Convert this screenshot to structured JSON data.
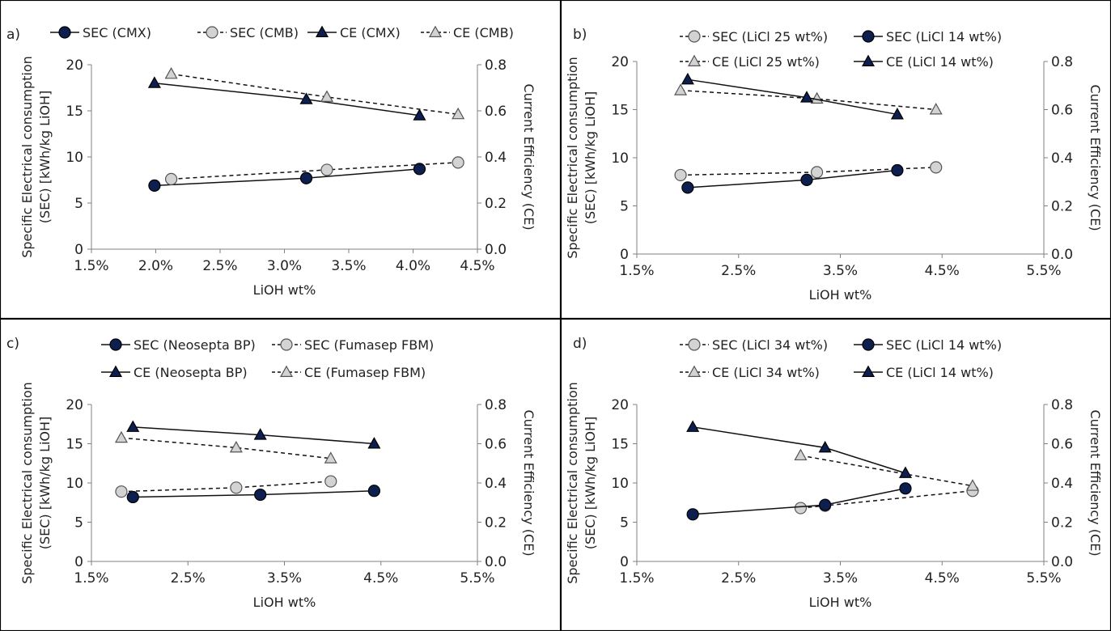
{
  "colors": {
    "series_filled": "#0d1f4f",
    "series_open": "#d3d3d3",
    "axis": "#808080",
    "line": "#111111",
    "border": "#000000"
  },
  "chart_data": [
    {
      "panel_label": "a)",
      "type": "line",
      "xlabel": "LiOH wt%",
      "ylabel_lines": [
        "Specific Electrical consumption",
        "(SEC) [kWh/kg LiOH]"
      ],
      "y2label": "Current Efficiency (CE)",
      "xlim": [
        0.015,
        0.045
      ],
      "xticks": [
        "1.5%",
        "2.0%",
        "2.5%",
        "3.0%",
        "3.5%",
        "4.0%",
        "4.5%"
      ],
      "ylim": [
        0,
        20
      ],
      "yticks": [
        "0",
        "5",
        "10",
        "15",
        "20"
      ],
      "y2lim": [
        0,
        0.8
      ],
      "y2ticks": [
        "0.0",
        "0.2",
        "0.4",
        "0.6",
        "0.8"
      ],
      "legend_rows": [
        [
          0,
          1,
          2,
          3
        ]
      ],
      "series": [
        {
          "name": "SEC (CMX)",
          "marker": "circle",
          "fill": "filled",
          "dash": false,
          "axis": "left",
          "x": [
            0.0199,
            0.0317,
            0.0405
          ],
          "y": [
            6.9,
            7.7,
            8.7
          ]
        },
        {
          "name": "SEC (CMB)",
          "marker": "circle",
          "fill": "open",
          "dash": true,
          "axis": "left",
          "x": [
            0.0212,
            0.0333,
            0.0435
          ],
          "y": [
            7.6,
            8.6,
            9.4
          ]
        },
        {
          "name": "CE (CMX)",
          "marker": "triangle",
          "fill": "filled",
          "dash": false,
          "axis": "right",
          "x": [
            0.0199,
            0.0317,
            0.0405
          ],
          "y": [
            0.72,
            0.65,
            0.58
          ]
        },
        {
          "name": "CE (CMB)",
          "marker": "triangle",
          "fill": "open",
          "dash": true,
          "axis": "right",
          "x": [
            0.0212,
            0.0333,
            0.0435
          ],
          "y": [
            0.76,
            0.66,
            0.585
          ]
        }
      ]
    },
    {
      "panel_label": "b)",
      "type": "line",
      "xlabel": "LiOH wt%",
      "ylabel_lines": [
        "Specific Electrical consumption",
        "(SEC) [kWh/kg LiOH]"
      ],
      "y2label": "Current Efficiency (CE)",
      "xlim": [
        0.015,
        0.055
      ],
      "xticks": [
        "1.5%",
        "2.5%",
        "3.5%",
        "4.5%",
        "5.5%"
      ],
      "ylim": [
        0,
        20
      ],
      "yticks": [
        "0",
        "5",
        "10",
        "15",
        "20"
      ],
      "y2lim": [
        0,
        0.8
      ],
      "y2ticks": [
        "0.0",
        "0.2",
        "0.4",
        "0.6",
        "0.8"
      ],
      "legend_rows": [
        [
          0,
          1
        ],
        [
          2,
          3
        ]
      ],
      "series": [
        {
          "name": "SEC (LiCl 25 wt%)",
          "marker": "circle",
          "fill": "open",
          "dash": true,
          "axis": "left",
          "x": [
            0.0193,
            0.0327,
            0.0444
          ],
          "y": [
            8.2,
            8.5,
            9.0
          ]
        },
        {
          "name": "SEC (LiCl 14 wt%)",
          "marker": "circle",
          "fill": "filled",
          "dash": false,
          "axis": "left",
          "x": [
            0.02,
            0.0317,
            0.0406
          ],
          "y": [
            6.9,
            7.7,
            8.7
          ]
        },
        {
          "name": "CE (LiCl 25 wt%)",
          "marker": "triangle",
          "fill": "open",
          "dash": true,
          "axis": "right",
          "x": [
            0.0193,
            0.0327,
            0.0444
          ],
          "y": [
            0.68,
            0.645,
            0.6
          ]
        },
        {
          "name": "CE (LiCl 14 wt%)",
          "marker": "triangle",
          "fill": "filled",
          "dash": false,
          "axis": "right",
          "x": [
            0.02,
            0.0317,
            0.0406
          ],
          "y": [
            0.725,
            0.65,
            0.58
          ]
        }
      ]
    },
    {
      "panel_label": "c)",
      "type": "line",
      "xlabel": "LiOH wt%",
      "ylabel_lines": [
        "Specific Electrical consumption",
        "(SEC) [kWh/kg LiOH]"
      ],
      "y2label": "Current Efficiency (CE)",
      "xlim": [
        0.015,
        0.055
      ],
      "xticks": [
        "1.5%",
        "2.5%",
        "3.5%",
        "4.5%",
        "5.5%"
      ],
      "ylim": [
        0,
        20
      ],
      "yticks": [
        "0",
        "5",
        "10",
        "15",
        "20"
      ],
      "y2lim": [
        0,
        0.8
      ],
      "y2ticks": [
        "0.0",
        "0.2",
        "0.4",
        "0.6",
        "0.8"
      ],
      "legend_rows": [
        [
          0,
          1
        ],
        [
          2,
          3
        ]
      ],
      "series": [
        {
          "name": "SEC (Neosepta BP)",
          "marker": "circle",
          "fill": "filled",
          "dash": false,
          "axis": "left",
          "x": [
            0.0193,
            0.0325,
            0.0443
          ],
          "y": [
            8.2,
            8.5,
            9.0
          ]
        },
        {
          "name": "SEC (Fumasep FBM)",
          "marker": "circle",
          "fill": "open",
          "dash": true,
          "axis": "left",
          "x": [
            0.0181,
            0.03,
            0.0398
          ],
          "y": [
            8.9,
            9.4,
            10.2
          ]
        },
        {
          "name": "CE (Neosepta BP)",
          "marker": "triangle",
          "fill": "filled",
          "dash": false,
          "axis": "right",
          "x": [
            0.0193,
            0.0325,
            0.0443
          ],
          "y": [
            0.685,
            0.645,
            0.6
          ]
        },
        {
          "name": "CE (Fumasep FBM)",
          "marker": "triangle",
          "fill": "open",
          "dash": true,
          "axis": "right",
          "x": [
            0.0181,
            0.03,
            0.0398
          ],
          "y": [
            0.63,
            0.58,
            0.525
          ]
        }
      ]
    },
    {
      "panel_label": "d)",
      "type": "line",
      "xlabel": "LiOH wt%",
      "ylabel_lines": [
        "Specific Electrical consumption",
        "(SEC) [kWh/kg LiOH]"
      ],
      "y2label": "Current Efficiency (CE)",
      "xlim": [
        0.015,
        0.055
      ],
      "xticks": [
        "1.5%",
        "2.5%",
        "3.5%",
        "4.5%",
        "5.5%"
      ],
      "ylim": [
        0,
        20
      ],
      "yticks": [
        "0",
        "5",
        "10",
        "15",
        "20"
      ],
      "y2lim": [
        0,
        0.8
      ],
      "y2ticks": [
        "0.0",
        "0.2",
        "0.4",
        "0.6",
        "0.8"
      ],
      "legend_rows": [
        [
          0,
          1
        ],
        [
          2,
          3
        ]
      ],
      "series": [
        {
          "name": "SEC (LiCl 34 wt%)",
          "marker": "circle",
          "fill": "open",
          "dash": true,
          "axis": "left",
          "x": [
            0.0311,
            0.0335,
            0.048
          ],
          "y": [
            6.8,
            7.1,
            9.0
          ]
        },
        {
          "name": "SEC (LiCl 14 wt%)",
          "marker": "circle",
          "fill": "filled",
          "dash": false,
          "axis": "left",
          "x": [
            0.0205,
            0.0335,
            0.0414
          ],
          "y": [
            6.0,
            7.2,
            9.3
          ]
        },
        {
          "name": "CE (LiCl 34 wt%)",
          "marker": "triangle",
          "fill": "open",
          "dash": true,
          "axis": "right",
          "x": [
            0.0311,
            0.048
          ],
          "y": [
            0.54,
            0.385
          ]
        },
        {
          "name": "CE (LiCl 14 wt%)",
          "marker": "triangle",
          "fill": "filled",
          "dash": false,
          "axis": "right",
          "x": [
            0.0205,
            0.0335,
            0.0414
          ],
          "y": [
            0.685,
            0.58,
            0.45
          ]
        }
      ]
    }
  ]
}
